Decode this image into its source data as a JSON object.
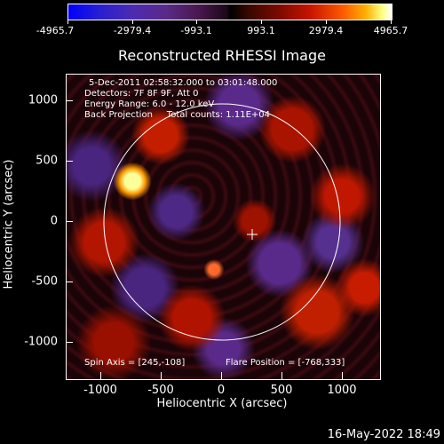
{
  "colorbar": {
    "labels": [
      "-4965.7",
      "-2979.4",
      "-993.1",
      "993.1",
      "2979.4",
      "4965.7"
    ]
  },
  "plot": {
    "title": "Reconstructed RHESSI Image",
    "info_lines": [
      "5-Dec-2011 02:58:32.000 to 03:01:48.000",
      "Detectors: 7F 8F 9F, Att 0",
      "Energy Range: 6.0 - 12.0 keV",
      "Back Projection     Total counts: 1.11E+04"
    ],
    "spin_axis": "Spin Axis = [245,-108]",
    "flare_position": "Flare Position = [-768,333]",
    "x_ticks": [
      "-1000",
      "-500",
      "0",
      "500",
      "1000"
    ],
    "y_ticks": [
      "1000",
      "500",
      "0",
      "-500",
      "-1000"
    ],
    "xlabel": "Heliocentric X (arcsec)",
    "ylabel": "Heliocentric Y (arcsec)"
  },
  "footer": {
    "timestamp": "16-May-2022 18:49"
  }
}
